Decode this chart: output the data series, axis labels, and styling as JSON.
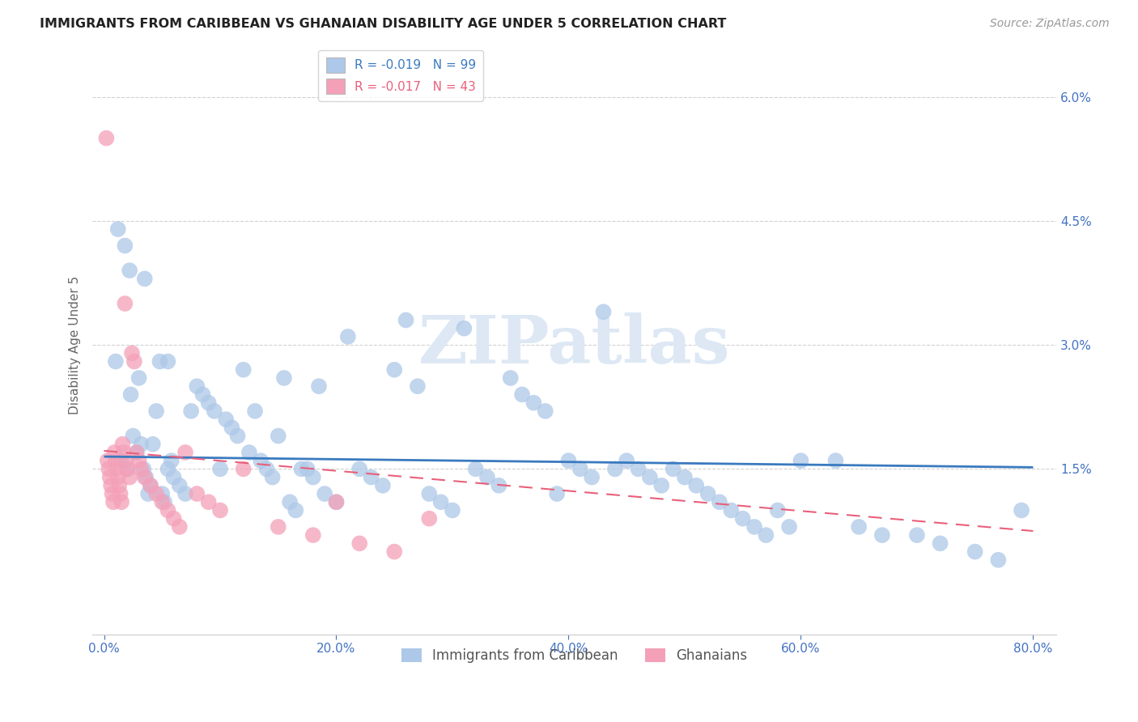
{
  "title": "IMMIGRANTS FROM CARIBBEAN VS GHANAIAN DISABILITY AGE UNDER 5 CORRELATION CHART",
  "source": "Source: ZipAtlas.com",
  "xlabel_ticks": [
    "0.0%",
    "20.0%",
    "40.0%",
    "60.0%",
    "80.0%"
  ],
  "xlabel_tick_vals": [
    0.0,
    20.0,
    40.0,
    60.0,
    80.0
  ],
  "ylabel_ticks": [
    "1.5%",
    "3.0%",
    "4.5%",
    "6.0%"
  ],
  "ylabel_tick_vals": [
    1.5,
    3.0,
    4.5,
    6.0
  ],
  "xlim": [
    -1.0,
    82.0
  ],
  "ylim": [
    -0.5,
    6.5
  ],
  "ylabel": "Disability Age Under 5",
  "watermark": "ZIPatlas",
  "blue_scatter_x": [
    1.0,
    1.5,
    2.0,
    2.3,
    2.5,
    2.8,
    3.0,
    3.2,
    3.4,
    3.6,
    3.8,
    4.0,
    4.2,
    4.5,
    4.8,
    5.0,
    5.2,
    5.5,
    5.8,
    6.0,
    6.5,
    7.0,
    7.5,
    8.0,
    8.5,
    9.0,
    9.5,
    10.0,
    10.5,
    11.0,
    11.5,
    12.0,
    12.5,
    13.0,
    13.5,
    14.0,
    14.5,
    15.0,
    15.5,
    16.0,
    16.5,
    17.0,
    17.5,
    18.0,
    18.5,
    19.0,
    20.0,
    21.0,
    22.0,
    23.0,
    24.0,
    25.0,
    26.0,
    27.0,
    28.0,
    29.0,
    30.0,
    31.0,
    32.0,
    33.0,
    34.0,
    35.0,
    36.0,
    37.0,
    38.0,
    39.0,
    40.0,
    41.0,
    42.0,
    43.0,
    44.0,
    45.0,
    46.0,
    47.0,
    48.0,
    49.0,
    50.0,
    51.0,
    52.0,
    53.0,
    54.0,
    55.0,
    56.0,
    57.0,
    58.0,
    59.0,
    60.0,
    63.0,
    65.0,
    67.0,
    70.0,
    72.0,
    75.0,
    77.0,
    79.0,
    1.2,
    1.8,
    2.2,
    3.5,
    5.5
  ],
  "blue_scatter_y": [
    2.8,
    1.6,
    1.5,
    2.4,
    1.9,
    1.7,
    2.6,
    1.8,
    1.5,
    1.4,
    1.2,
    1.3,
    1.8,
    2.2,
    2.8,
    1.2,
    1.1,
    1.5,
    1.6,
    1.4,
    1.3,
    1.2,
    2.2,
    2.5,
    2.4,
    2.3,
    2.2,
    1.5,
    2.1,
    2.0,
    1.9,
    2.7,
    1.7,
    2.2,
    1.6,
    1.5,
    1.4,
    1.9,
    2.6,
    1.1,
    1.0,
    1.5,
    1.5,
    1.4,
    2.5,
    1.2,
    1.1,
    3.1,
    1.5,
    1.4,
    1.3,
    2.7,
    3.3,
    2.5,
    1.2,
    1.1,
    1.0,
    3.2,
    1.5,
    1.4,
    1.3,
    2.6,
    2.4,
    2.3,
    2.2,
    1.2,
    1.6,
    1.5,
    1.4,
    3.4,
    1.5,
    1.6,
    1.5,
    1.4,
    1.3,
    1.5,
    1.4,
    1.3,
    1.2,
    1.1,
    1.0,
    0.9,
    0.8,
    0.7,
    1.0,
    0.8,
    1.6,
    1.6,
    0.8,
    0.7,
    0.7,
    0.6,
    0.5,
    0.4,
    1.0,
    4.4,
    4.2,
    3.9,
    3.8,
    2.8
  ],
  "pink_scatter_x": [
    0.2,
    0.3,
    0.4,
    0.5,
    0.6,
    0.7,
    0.8,
    0.9,
    1.0,
    1.1,
    1.2,
    1.3,
    1.4,
    1.5,
    1.6,
    1.7,
    1.8,
    1.9,
    2.0,
    2.2,
    2.4,
    2.6,
    2.8,
    3.0,
    3.2,
    3.5,
    4.0,
    4.5,
    5.0,
    5.5,
    6.0,
    6.5,
    7.0,
    8.0,
    9.0,
    10.0,
    12.0,
    15.0,
    18.0,
    20.0,
    22.0,
    25.0,
    28.0
  ],
  "pink_scatter_y": [
    5.5,
    1.6,
    1.5,
    1.4,
    1.3,
    1.2,
    1.1,
    1.7,
    1.6,
    1.5,
    1.4,
    1.3,
    1.2,
    1.1,
    1.8,
    1.7,
    3.5,
    1.6,
    1.5,
    1.4,
    2.9,
    2.8,
    1.7,
    1.6,
    1.5,
    1.4,
    1.3,
    1.2,
    1.1,
    1.0,
    0.9,
    0.8,
    1.7,
    1.2,
    1.1,
    1.0,
    1.5,
    0.8,
    0.7,
    1.1,
    0.6,
    0.5,
    0.9
  ],
  "blue_line_x": [
    0.0,
    80.0
  ],
  "blue_line_y": [
    1.65,
    1.52
  ],
  "pink_line_x": [
    0.0,
    80.0
  ],
  "pink_line_y": [
    1.72,
    0.75
  ],
  "blue_color": "#3a7abf",
  "pink_color": "#e8607a",
  "blue_scatter_color": "#adc8e8",
  "pink_scatter_color": "#f4a0b8",
  "grid_color": "#cccccc",
  "title_color": "#333333",
  "axis_color": "#4472c4",
  "watermark_color": "#dde8f4"
}
